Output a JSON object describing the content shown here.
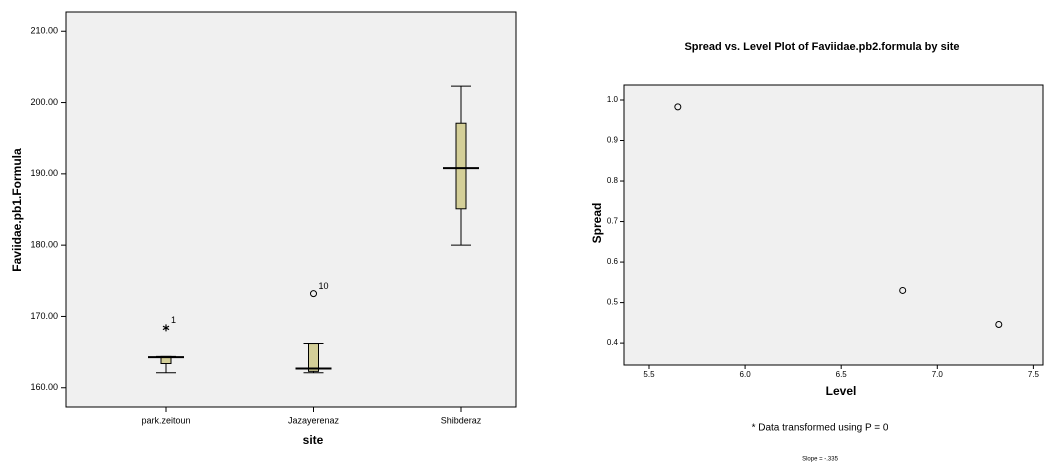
{
  "chart_data": [
    {
      "type": "boxplot",
      "y_label": "Faviidae.pb1.Formula",
      "x_label": "site",
      "categories": [
        "park.zeitoun",
        "Jazayerenaz",
        "Shibderaz"
      ],
      "boxes": [
        {
          "min": 162.1,
          "q1": 163.4,
          "median": 164.3,
          "q3": 164.4,
          "max": 164.4,
          "outliers": [
            {
              "value": 168.4,
              "label": "1",
              "marker": "star"
            }
          ]
        },
        {
          "min": 162.1,
          "q1": 162.3,
          "median": 162.7,
          "q3": 166.2,
          "max": 166.2,
          "outliers": [
            {
              "value": 173.2,
              "label": "10",
              "marker": "circle"
            }
          ]
        },
        {
          "min": 180.0,
          "q1": 185.1,
          "median": 190.8,
          "q3": 197.1,
          "max": 202.3,
          "outliers": []
        }
      ],
      "color": "#d4cf98",
      "ylim": [
        157.3,
        212.7
      ],
      "yticks": [
        {
          "value": 160,
          "label": "160.00"
        },
        {
          "value": 170,
          "label": "170.00"
        },
        {
          "value": 180,
          "label": "180.00"
        },
        {
          "value": 190,
          "label": "190.00"
        },
        {
          "value": 200,
          "label": "200.00"
        },
        {
          "value": 210,
          "label": "210.00"
        }
      ]
    },
    {
      "type": "scatter",
      "title": "Spread vs. Level Plot of Faviidae.pb2.formula by site",
      "x_label": "Level",
      "y_label": "Spread",
      "footnote": "* Data transformed using P = 0",
      "slope_note": "Slope = -.335",
      "x": [
        5.65,
        6.82,
        7.32
      ],
      "values": [
        0.983,
        0.53,
        0.446
      ],
      "xlim": [
        5.37,
        7.55
      ],
      "ylim": [
        0.346,
        1.037
      ],
      "xticks": [
        5.5,
        {
          "value": 6,
          "label": "6.0"
        },
        6.5,
        {
          "value": 7,
          "label": "7.0"
        },
        7.5
      ],
      "yticks": [
        0.4,
        0.5,
        0.6,
        0.7,
        0.8,
        0.9,
        {
          "value": 1,
          "label": "1.0"
        }
      ]
    }
  ]
}
